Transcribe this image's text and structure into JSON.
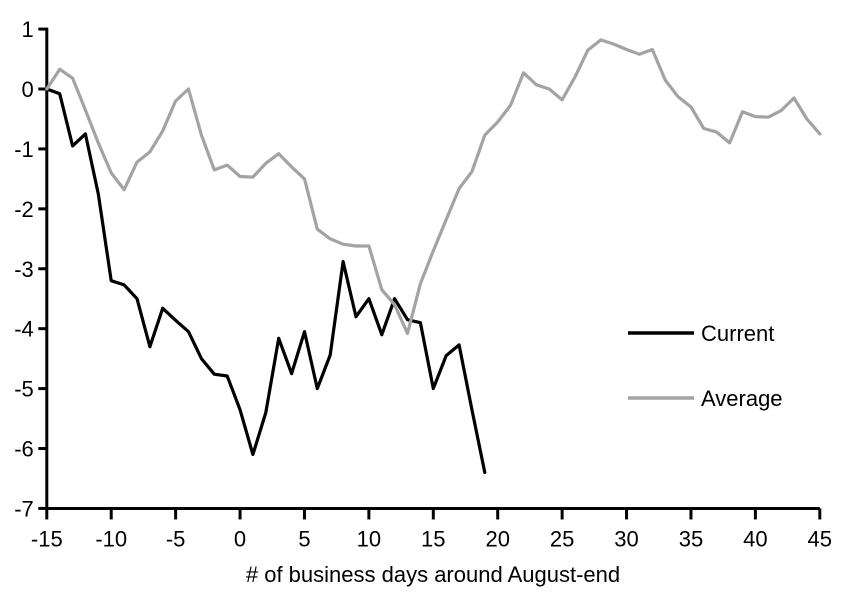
{
  "chart_data": {
    "type": "line",
    "title": "",
    "xlabel": "# of business days around August-end",
    "ylabel": "",
    "xlim": [
      -15,
      45
    ],
    "ylim": [
      -7,
      1
    ],
    "x_ticks": [
      -15,
      -10,
      -5,
      0,
      5,
      10,
      15,
      20,
      25,
      30,
      35,
      40,
      45
    ],
    "y_ticks": [
      1,
      0,
      -1,
      -2,
      -3,
      -4,
      -5,
      -6,
      -7
    ],
    "grid": false,
    "legend_position": "right-middle",
    "axis_color": "#000000",
    "series": [
      {
        "name": "Current",
        "color": "#000000",
        "x": [
          -15,
          -14,
          -13,
          -12,
          -11,
          -10,
          -9,
          -8,
          -7,
          -6,
          -5,
          -4,
          -3,
          -2,
          -1,
          0,
          1,
          2,
          3,
          4,
          5,
          6,
          7,
          8,
          9,
          10,
          11,
          12,
          13,
          14,
          15,
          16,
          17,
          18,
          19
        ],
        "values": [
          0,
          -0.08,
          -0.95,
          -0.75,
          -1.75,
          -3.2,
          -3.27,
          -3.5,
          -4.3,
          -3.66,
          -3.86,
          -4.05,
          -4.5,
          -4.76,
          -4.79,
          -5.35,
          -6.1,
          -5.4,
          -4.16,
          -4.75,
          -4.05,
          -5.0,
          -4.44,
          -2.88,
          -3.8,
          -3.5,
          -4.1,
          -3.5,
          -3.85,
          -3.9,
          -5.0,
          -4.45,
          -4.27,
          -5.35,
          -6.4
        ]
      },
      {
        "name": "Average",
        "color": "#a3a3a3",
        "x": [
          -15,
          -14,
          -13,
          -12,
          -11,
          -10,
          -9,
          -8,
          -7,
          -6,
          -5,
          -4,
          -3,
          -2,
          -1,
          0,
          1,
          2,
          3,
          4,
          5,
          6,
          7,
          8,
          9,
          10,
          11,
          12,
          13,
          14,
          15,
          16,
          17,
          18,
          19,
          20,
          21,
          22,
          23,
          24,
          25,
          26,
          27,
          28,
          29,
          30,
          31,
          32,
          33,
          34,
          35,
          36,
          37,
          38,
          39,
          40,
          41,
          42,
          43,
          44,
          45
        ],
        "values": [
          0,
          0.33,
          0.18,
          -0.35,
          -0.9,
          -1.4,
          -1.68,
          -1.22,
          -1.05,
          -0.7,
          -0.2,
          0.0,
          -0.77,
          -1.35,
          -1.27,
          -1.46,
          -1.47,
          -1.24,
          -1.08,
          -1.3,
          -1.5,
          -2.34,
          -2.5,
          -2.59,
          -2.62,
          -2.62,
          -3.35,
          -3.6,
          -4.08,
          -3.25,
          -2.7,
          -2.18,
          -1.66,
          -1.38,
          -0.77,
          -0.55,
          -0.27,
          0.27,
          0.07,
          0.0,
          -0.18,
          0.2,
          0.65,
          0.82,
          0.75,
          0.66,
          0.58,
          0.66,
          0.15,
          -0.13,
          -0.3,
          -0.66,
          -0.72,
          -0.9,
          -0.38,
          -0.46,
          -0.47,
          -0.36,
          -0.15,
          -0.5,
          -0.75
        ]
      }
    ]
  },
  "legend": {
    "items": [
      {
        "label": "Current",
        "color": "#000000"
      },
      {
        "label": "Average",
        "color": "#a3a3a3"
      }
    ]
  }
}
